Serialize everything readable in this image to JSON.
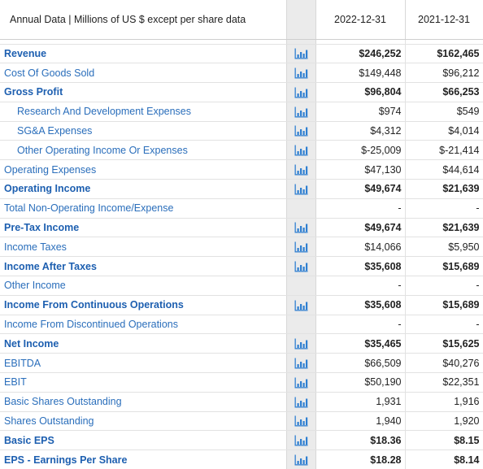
{
  "header": {
    "label": "Annual Data | Millions of US $ except per share data",
    "years": [
      "2022-12-31",
      "2021-12-31"
    ]
  },
  "rows": [
    {
      "label": "Revenue",
      "bold": true,
      "indent": false,
      "chart": true,
      "v1": "$246,252",
      "v2": "$162,465"
    },
    {
      "label": "Cost Of Goods Sold",
      "bold": false,
      "indent": false,
      "chart": true,
      "v1": "$149,448",
      "v2": "$96,212"
    },
    {
      "label": "Gross Profit",
      "bold": true,
      "indent": false,
      "chart": true,
      "v1": "$96,804",
      "v2": "$66,253"
    },
    {
      "label": "Research And Development Expenses",
      "bold": false,
      "indent": true,
      "chart": true,
      "v1": "$974",
      "v2": "$549"
    },
    {
      "label": "SG&A Expenses",
      "bold": false,
      "indent": true,
      "chart": true,
      "v1": "$4,312",
      "v2": "$4,014"
    },
    {
      "label": "Other Operating Income Or Expenses",
      "bold": false,
      "indent": true,
      "chart": true,
      "v1": "$-25,009",
      "v2": "$-21,414"
    },
    {
      "label": "Operating Expenses",
      "bold": false,
      "indent": false,
      "chart": true,
      "v1": "$47,130",
      "v2": "$44,614"
    },
    {
      "label": "Operating Income",
      "bold": true,
      "indent": false,
      "chart": true,
      "v1": "$49,674",
      "v2": "$21,639"
    },
    {
      "label": "Total Non-Operating Income/Expense",
      "bold": false,
      "indent": false,
      "chart": false,
      "v1": "-",
      "v2": "-"
    },
    {
      "label": "Pre-Tax Income",
      "bold": true,
      "indent": false,
      "chart": true,
      "v1": "$49,674",
      "v2": "$21,639"
    },
    {
      "label": "Income Taxes",
      "bold": false,
      "indent": false,
      "chart": true,
      "v1": "$14,066",
      "v2": "$5,950"
    },
    {
      "label": "Income After Taxes",
      "bold": true,
      "indent": false,
      "chart": true,
      "v1": "$35,608",
      "v2": "$15,689"
    },
    {
      "label": "Other Income",
      "bold": false,
      "indent": false,
      "chart": false,
      "v1": "-",
      "v2": "-"
    },
    {
      "label": "Income From Continuous Operations",
      "bold": true,
      "indent": false,
      "chart": true,
      "v1": "$35,608",
      "v2": "$15,689"
    },
    {
      "label": "Income From Discontinued Operations",
      "bold": false,
      "indent": false,
      "chart": false,
      "v1": "-",
      "v2": "-"
    },
    {
      "label": "Net Income",
      "bold": true,
      "indent": false,
      "chart": true,
      "v1": "$35,465",
      "v2": "$15,625"
    },
    {
      "label": "EBITDA",
      "bold": false,
      "indent": false,
      "chart": true,
      "v1": "$66,509",
      "v2": "$40,276"
    },
    {
      "label": "EBIT",
      "bold": false,
      "indent": false,
      "chart": true,
      "v1": "$50,190",
      "v2": "$22,351"
    },
    {
      "label": "Basic Shares Outstanding",
      "bold": false,
      "indent": false,
      "chart": true,
      "v1": "1,931",
      "v2": "1,916"
    },
    {
      "label": "Shares Outstanding",
      "bold": false,
      "indent": false,
      "chart": true,
      "v1": "1,940",
      "v2": "1,920"
    },
    {
      "label": "Basic EPS",
      "bold": true,
      "indent": false,
      "chart": true,
      "v1": "$18.36",
      "v2": "$8.15"
    },
    {
      "label": "EPS - Earnings Per Share",
      "bold": true,
      "indent": false,
      "chart": true,
      "v1": "$18.28",
      "v2": "$8.14"
    }
  ],
  "icons": {
    "chart": "bar-chart-icon"
  },
  "colors": {
    "link": "#2a6ebb",
    "icon": "#2f7fd1",
    "chart_column_bg": "#ebebeb"
  }
}
